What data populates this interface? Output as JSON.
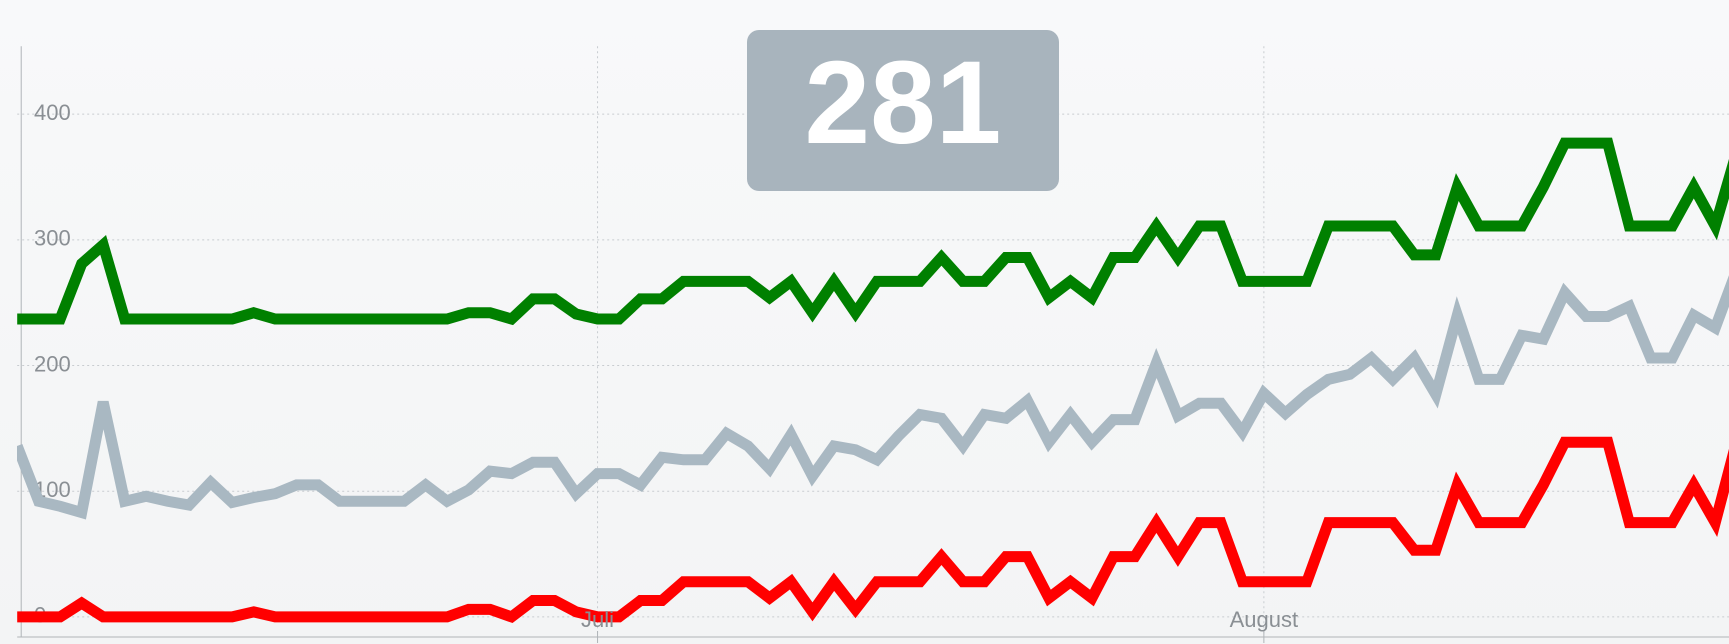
{
  "chart_data": {
    "type": "line",
    "annotation": "281",
    "x": [
      -27,
      -26,
      -25,
      -24,
      -23,
      -22,
      -21,
      -20,
      -19,
      -18,
      -17,
      -16,
      -15,
      -14,
      -13,
      -12,
      -11,
      -10,
      -9,
      -8,
      -7,
      -6,
      -5,
      -4,
      -3,
      -2,
      -1,
      0,
      1,
      2,
      3,
      4,
      5,
      6,
      7,
      8,
      9,
      10,
      11,
      12,
      13,
      14,
      15,
      16,
      17,
      18,
      19,
      20,
      21,
      22,
      23,
      24,
      25,
      26,
      27,
      28,
      29,
      30,
      31,
      32,
      33,
      34,
      35,
      36,
      37,
      38,
      39,
      40,
      41,
      42,
      43,
      44,
      45,
      46,
      47,
      48,
      49,
      50,
      51,
      52,
      53
    ],
    "series": [
      {
        "name": "green",
        "color": "#008000",
        "values": [
          237,
          237,
          237,
          281,
          296,
          237,
          237,
          237,
          237,
          237,
          237,
          242,
          237,
          237,
          237,
          237,
          237,
          237,
          237,
          237,
          237,
          242,
          242,
          237,
          253,
          253,
          241,
          237,
          237,
          253,
          253,
          267,
          267,
          267,
          267,
          254,
          267,
          242,
          267,
          242,
          267,
          267,
          267,
          286,
          267,
          267,
          286,
          286,
          254,
          267,
          254,
          286,
          286,
          311,
          286,
          311,
          311,
          267,
          267,
          267,
          267,
          311,
          311,
          311,
          311,
          288,
          288,
          342,
          311,
          311,
          311,
          342,
          377,
          377,
          377,
          311,
          311,
          311,
          342,
          311,
          370
        ]
      },
      {
        "name": "gray",
        "color": "#a9b8c2",
        "values": [
          136,
          92,
          88,
          83,
          171,
          92,
          96,
          92,
          89,
          107,
          91,
          95,
          98,
          105,
          105,
          92,
          92,
          92,
          92,
          105,
          92,
          101,
          116,
          114,
          123,
          123,
          98,
          114,
          114,
          105,
          127,
          125,
          125,
          146,
          136,
          118,
          145,
          112,
          136,
          133,
          125,
          144,
          161,
          158,
          136,
          161,
          158,
          172,
          139,
          161,
          139,
          157,
          157,
          202,
          160,
          170,
          170,
          147,
          178,
          162,
          177,
          189,
          193,
          206,
          189,
          206,
          177,
          240,
          189,
          189,
          224,
          221,
          258,
          239,
          239,
          247,
          206,
          206,
          240,
          230,
          276
        ]
      },
      {
        "name": "red",
        "color": "#ff0000",
        "values": [
          0,
          0,
          0,
          11,
          0,
          0,
          0,
          0,
          0,
          0,
          0,
          4,
          0,
          0,
          0,
          0,
          0,
          0,
          0,
          0,
          0,
          6,
          6,
          0,
          13,
          13,
          4,
          0,
          0,
          13,
          13,
          28,
          28,
          28,
          28,
          15,
          28,
          4,
          28,
          6,
          28,
          28,
          28,
          48,
          28,
          28,
          48,
          48,
          15,
          28,
          15,
          48,
          48,
          75,
          48,
          75,
          75,
          28,
          28,
          28,
          28,
          75,
          75,
          75,
          75,
          53,
          53,
          105,
          75,
          75,
          75,
          105,
          139,
          139,
          139,
          75,
          75,
          75,
          105,
          75,
          140
        ]
      }
    ],
    "xlim": [
      -27,
      52.5
    ],
    "xticks": [
      {
        "value": 0,
        "label": "Juli"
      },
      {
        "value": 31,
        "label": "August"
      }
    ],
    "ylim": [
      -16,
      454
    ],
    "yticks": [
      0,
      100,
      200,
      300,
      400
    ],
    "grid": true
  }
}
